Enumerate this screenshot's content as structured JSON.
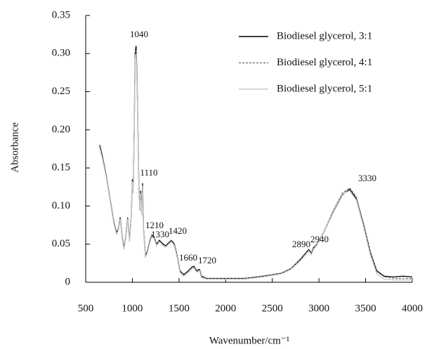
{
  "chart_data": {
    "type": "line",
    "xlabel": "Wavenumber/cm⁻¹",
    "ylabel": "Absorbance",
    "x": [
      650,
      680,
      720,
      760,
      800,
      830,
      850,
      870,
      890,
      910,
      930,
      950,
      970,
      990,
      1000,
      1010,
      1020,
      1030,
      1040,
      1050,
      1060,
      1070,
      1080,
      1090,
      1100,
      1110,
      1120,
      1140,
      1160,
      1190,
      1210,
      1230,
      1260,
      1290,
      1330,
      1360,
      1390,
      1420,
      1450,
      1480,
      1510,
      1550,
      1600,
      1640,
      1660,
      1690,
      1720,
      1740,
      1800,
      2000,
      2200,
      2400,
      2600,
      2700,
      2800,
      2870,
      2890,
      2920,
      2940,
      2980,
      3050,
      3150,
      3250,
      3330,
      3400,
      3480,
      3550,
      3620,
      3700,
      3800,
      3900,
      4000
    ],
    "series": [
      {
        "name": "Biodiesel glycerol, 3:1",
        "color": "#000000",
        "dashed": false,
        "values": [
          0.18,
          0.165,
          0.14,
          0.11,
          0.08,
          0.065,
          0.07,
          0.085,
          0.06,
          0.045,
          0.06,
          0.085,
          0.055,
          0.09,
          0.135,
          0.12,
          0.2,
          0.3,
          0.31,
          0.27,
          0.2,
          0.13,
          0.095,
          0.12,
          0.09,
          0.13,
          0.07,
          0.035,
          0.04,
          0.055,
          0.062,
          0.06,
          0.05,
          0.055,
          0.05,
          0.048,
          0.052,
          0.055,
          0.05,
          0.035,
          0.015,
          0.01,
          0.015,
          0.02,
          0.021,
          0.015,
          0.017,
          0.008,
          0.005,
          0.005,
          0.005,
          0.008,
          0.012,
          0.018,
          0.03,
          0.04,
          0.043,
          0.038,
          0.045,
          0.05,
          0.065,
          0.092,
          0.115,
          0.122,
          0.11,
          0.075,
          0.04,
          0.015,
          0.008,
          0.007,
          0.008,
          0.007
        ]
      },
      {
        "name": "Biodiesel glycerol, 4:1",
        "color": "#777777",
        "dashed": true,
        "values": [
          0.178,
          0.163,
          0.139,
          0.109,
          0.079,
          0.064,
          0.069,
          0.084,
          0.059,
          0.044,
          0.059,
          0.084,
          0.054,
          0.089,
          0.133,
          0.118,
          0.198,
          0.297,
          0.305,
          0.266,
          0.197,
          0.128,
          0.094,
          0.118,
          0.089,
          0.128,
          0.069,
          0.034,
          0.039,
          0.054,
          0.061,
          0.059,
          0.049,
          0.054,
          0.049,
          0.047,
          0.051,
          0.054,
          0.049,
          0.034,
          0.014,
          0.009,
          0.014,
          0.019,
          0.02,
          0.014,
          0.016,
          0.007,
          0.005,
          0.005,
          0.005,
          0.008,
          0.012,
          0.018,
          0.029,
          0.039,
          0.042,
          0.037,
          0.044,
          0.05,
          0.066,
          0.094,
          0.117,
          0.124,
          0.112,
          0.076,
          0.04,
          0.014,
          0.007,
          0.005,
          0.005,
          0.005
        ]
      },
      {
        "name": "Biodiesel glycerol, 5:1",
        "color": "#c8c8c8",
        "dashed": false,
        "values": [
          0.176,
          0.162,
          0.138,
          0.108,
          0.078,
          0.063,
          0.068,
          0.083,
          0.058,
          0.043,
          0.058,
          0.083,
          0.053,
          0.088,
          0.132,
          0.117,
          0.196,
          0.294,
          0.3,
          0.262,
          0.195,
          0.126,
          0.093,
          0.116,
          0.088,
          0.126,
          0.068,
          0.033,
          0.038,
          0.053,
          0.06,
          0.058,
          0.048,
          0.053,
          0.048,
          0.046,
          0.05,
          0.053,
          0.048,
          0.033,
          0.013,
          0.008,
          0.013,
          0.018,
          0.019,
          0.013,
          0.015,
          0.006,
          0.004,
          0.004,
          0.004,
          0.007,
          0.011,
          0.017,
          0.028,
          0.038,
          0.041,
          0.036,
          0.043,
          0.049,
          0.065,
          0.093,
          0.116,
          0.12,
          0.108,
          0.072,
          0.036,
          0.011,
          0.004,
          0.003,
          0.003,
          0.003
        ]
      }
    ],
    "xlim": [
      500,
      4000
    ],
    "xticks": [
      500,
      1000,
      1500,
      2000,
      2500,
      3000,
      3500,
      4000
    ],
    "ylim": [
      0,
      0.35
    ],
    "yticks": [
      0,
      0.05,
      {
        "value": 0.1,
        "label": "0.10"
      },
      0.15,
      {
        "value": 0.2,
        "label": "0.20"
      },
      0.25,
      {
        "value": 0.3,
        "label": "0.30"
      },
      0.35
    ],
    "annotations": [
      "1040",
      "1110",
      "1210",
      "1330",
      "1420",
      "1660",
      "1720",
      "2890",
      "2940",
      "3330"
    ],
    "legend": "upper right",
    "grid": false
  }
}
